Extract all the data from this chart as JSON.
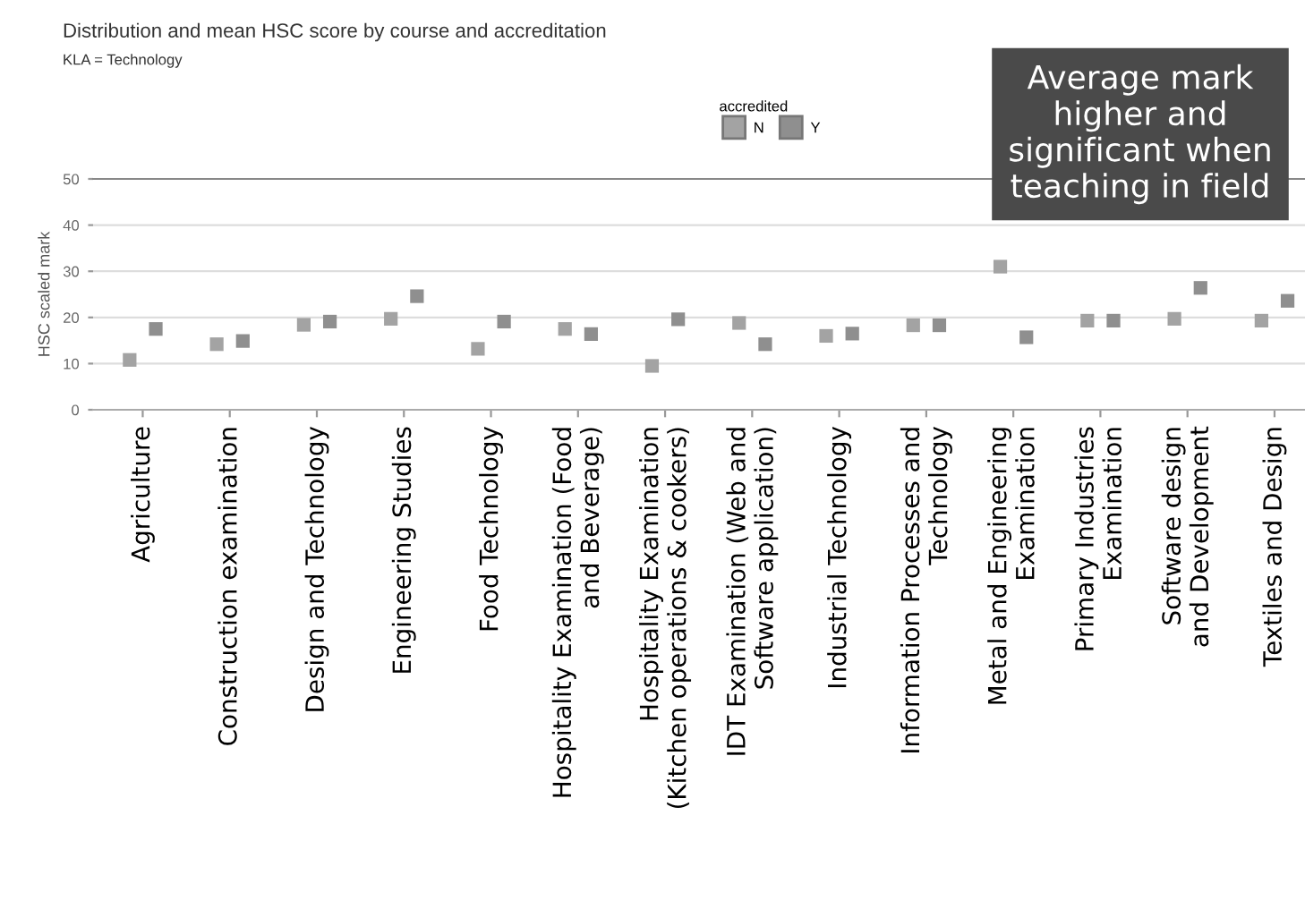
{
  "chart_data": {
    "type": "scatter",
    "title": "Distribution and mean HSC score by course and accreditation",
    "subtitle": "KLA = Technology",
    "ylabel": "HSC scaled mark",
    "legend_title": "accredited",
    "categories": [
      "Agriculture",
      "Construction examination",
      "Design and Technology",
      "Engineering Studies",
      "Food Technology",
      "Hospitality Examination (Food\nand Beverage)",
      "Hospitality Examination\n(Kitchen operations & cookers)",
      "IDT Examination (Web and\nSoftware application)",
      "Industrial Technology",
      "Information Processes and\nTechnology",
      "Metal and Engineering\nExamination",
      "Primary Industries\nExamination",
      "Software design\nand Development",
      "Textiles and Design"
    ],
    "series": [
      {
        "name": "N",
        "color": "#a3a3a3",
        "values": [
          10.8,
          14.2,
          18.4,
          19.7,
          13.2,
          17.5,
          9.5,
          18.8,
          16,
          18.3,
          31,
          19.3,
          19.7,
          19.3
        ]
      },
      {
        "name": "Y",
        "color": "#8f8f8f",
        "values": [
          17.5,
          14.9,
          19.1,
          24.6,
          19.1,
          16.4,
          19.6,
          14.2,
          16.5,
          18.3,
          15.7,
          19.3,
          26.4,
          23.6
        ]
      }
    ],
    "ylim": [
      0,
      50
    ],
    "yticks": [
      0,
      10,
      20,
      30,
      40,
      50
    ],
    "grid": "y",
    "marker": "square",
    "legend": "top right",
    "annotations": [
      "Average mark higher and significant when teaching in field"
    ]
  }
}
